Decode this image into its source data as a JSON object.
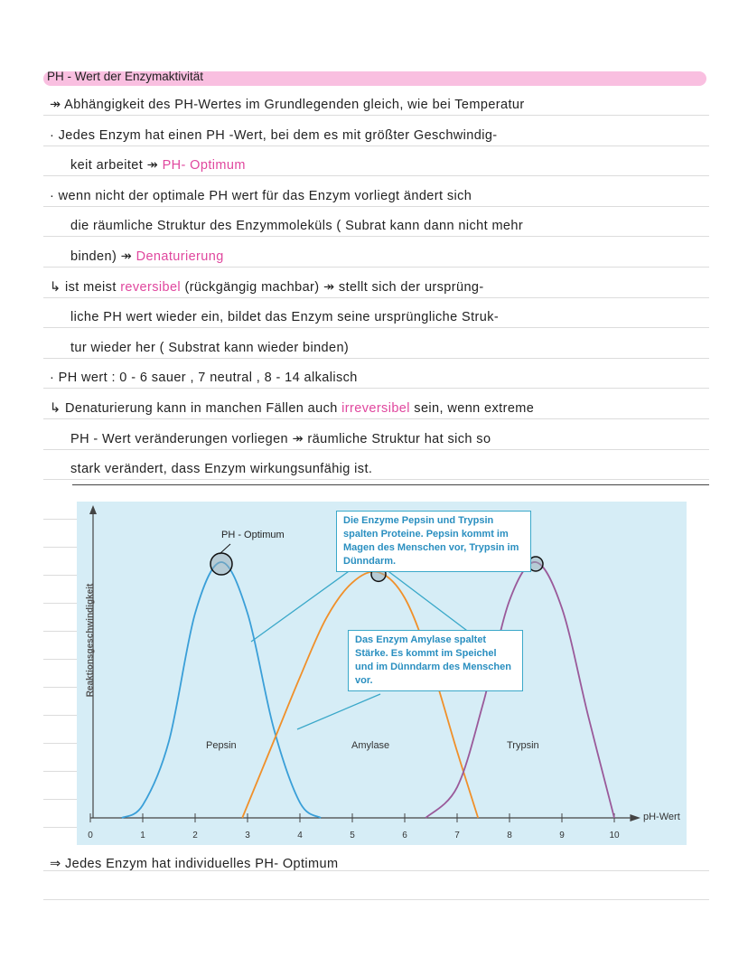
{
  "note": {
    "title": "PH - Wert der Enzymaktivität",
    "lines": [
      {
        "prefix": "↠ Abhängigkeit des PH-Wertes im Grundlegenden gleich, wie bei Temperatur",
        "highlight": "",
        "suffix": ""
      },
      {
        "prefix": "· Jedes Enzym hat einen PH -Wert, bei dem es mit größter Geschwindig-",
        "highlight": "",
        "suffix": ""
      },
      {
        "prefix": "keit arbeitet ↠ ",
        "highlight": "PH- Optimum",
        "suffix": ""
      },
      {
        "prefix": "· wenn nicht der optimale PH wert für das Enzym vorliegt ändert sich",
        "highlight": "",
        "suffix": ""
      },
      {
        "prefix": "die räumliche Struktur des Enzymmoleküls ( Subrat kann dann nicht mehr",
        "highlight": "",
        "suffix": ""
      },
      {
        "prefix": "binden) ↠ ",
        "highlight": "Denaturierung",
        "suffix": ""
      },
      {
        "prefix": "↳ ist meist ",
        "highlight": "reversibel",
        "suffix": " (rückgängig machbar) ↠ stellt sich der ursprüng-"
      },
      {
        "prefix": "liche PH wert wieder ein, bildet das Enzym seine ursprüngliche Struk-",
        "highlight": "",
        "suffix": ""
      },
      {
        "prefix": "tur wieder her ( Substrat kann wieder binden)",
        "highlight": "",
        "suffix": ""
      },
      {
        "prefix": "· PH wert : 0 - 6 sauer , 7 neutral , 8 - 14 alkalisch",
        "highlight": "",
        "suffix": ""
      },
      {
        "prefix": "↳ Denaturierung kann in manchen Fällen auch ",
        "highlight": "irreversibel",
        "suffix": " sein, wenn extreme"
      },
      {
        "prefix": "PH - Wert veränderungen vorliegen ↠ räumliche Struktur hat sich so",
        "highlight": "",
        "suffix": ""
      },
      {
        "prefix": "stark verändert, dass Enzym wirkungsunfähig ist.",
        "highlight": "",
        "suffix": ""
      }
    ],
    "conclusion": "⇒ Jedes Enzym hat individuelles PH- Optimum",
    "colors": {
      "highlight": "#f9bfe0",
      "pink_text": "#e0479e"
    }
  },
  "chart_data": {
    "type": "line",
    "xlabel": "pH-Wert",
    "ylabel": "Reaktionsgeschwindigkeit",
    "xlim": [
      0,
      10
    ],
    "xticks": [
      "0",
      "1",
      "2",
      "3",
      "4",
      "5",
      "6",
      "7",
      "8",
      "9",
      "10"
    ],
    "grid": false,
    "annotation_handwritten": "PH - Optimum",
    "callouts": [
      "Die Enzyme Pepsin und Trypsin spalten Proteine. Pepsin kommt im Magen des Menschen vor, Trypsin im Dünndarm.",
      "Das Enzym Amylase spaltet Stärke. Es kommt im Speichel und im Dünndarm des Menschen vor."
    ],
    "series": [
      {
        "name": "Pepsin",
        "color": "#3a9fd8",
        "optimum": 2.5,
        "points": [
          [
            0.6,
            0
          ],
          [
            1,
            0.05
          ],
          [
            1.5,
            0.3
          ],
          [
            2,
            0.8
          ],
          [
            2.5,
            1
          ],
          [
            3,
            0.8
          ],
          [
            3.5,
            0.35
          ],
          [
            4,
            0.06
          ],
          [
            4.4,
            0
          ]
        ]
      },
      {
        "name": "Amylase",
        "color": "#f0902a",
        "optimum": 5.5,
        "points": [
          [
            2.9,
            0
          ],
          [
            3.5,
            0.3
          ],
          [
            4,
            0.55
          ],
          [
            4.5,
            0.78
          ],
          [
            5,
            0.92
          ],
          [
            5.5,
            0.96
          ],
          [
            6,
            0.86
          ],
          [
            6.5,
            0.6
          ],
          [
            7,
            0.26
          ],
          [
            7.4,
            0
          ]
        ]
      },
      {
        "name": "Trypsin",
        "color": "#9a5a9a",
        "optimum": 8.5,
        "points": [
          [
            6.4,
            0
          ],
          [
            7,
            0.12
          ],
          [
            7.5,
            0.45
          ],
          [
            8,
            0.85
          ],
          [
            8.5,
            1
          ],
          [
            9,
            0.82
          ],
          [
            9.5,
            0.4
          ],
          [
            10,
            0
          ]
        ]
      }
    ],
    "background": "#d6edf6"
  }
}
